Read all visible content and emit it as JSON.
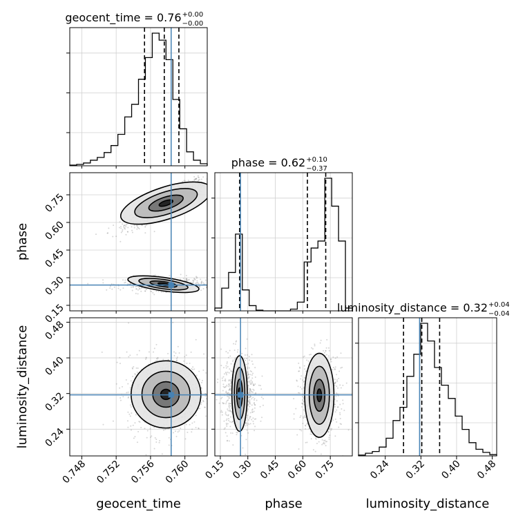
{
  "chart_data": {
    "type": "corner",
    "parameters": [
      "geocent_time",
      "phase",
      "luminosity_distance"
    ],
    "ranges": {
      "geocent_time": [
        0.7466,
        0.7626
      ],
      "phase": [
        0.12,
        0.87
      ],
      "luminosity_distance": [
        0.18,
        0.49
      ]
    },
    "ticks": {
      "geocent_time": [
        "0.748",
        "0.752",
        "0.756",
        "0.760"
      ],
      "phase": [
        "0.15",
        "0.30",
        "0.45",
        "0.60",
        "0.75"
      ],
      "luminosity_distance": [
        "0.24",
        "0.32",
        "0.40",
        "0.48"
      ]
    },
    "truths": {
      "geocent_time": 0.7584,
      "phase": 0.26,
      "luminosity_distance": 0.317
    },
    "titles": {
      "geocent_time": {
        "label": "geocent_time = 0.76",
        "plus": "+0.00",
        "minus": "−0.00"
      },
      "phase": {
        "label": "phase = 0.62",
        "plus": "+0.10",
        "minus": "−0.37"
      },
      "luminosity_distance": {
        "label": "luminosity_distance = 0.32",
        "plus": "+0.04",
        "minus": "−0.04"
      }
    },
    "quantiles": {
      "geocent_time": [
        0.7553,
        0.7576,
        0.7593
      ],
      "phase": [
        0.255,
        0.625,
        0.725
      ],
      "luminosity_distance": [
        0.281,
        0.322,
        0.362
      ]
    },
    "histograms": {
      "geocent_time": {
        "edges": [
          0.7466,
          0.7474,
          0.7482,
          0.749,
          0.7498,
          0.7506,
          0.7514,
          0.7522,
          0.753,
          0.7538,
          0.7546,
          0.7554,
          0.7562,
          0.757,
          0.7578,
          0.7586,
          0.7594,
          0.7602,
          0.761,
          0.7618,
          0.7626
        ],
        "counts": [
          1,
          2,
          4,
          8,
          12,
          19,
          29,
          45,
          70,
          88,
          124,
          155,
          190,
          180,
          152,
          95,
          53,
          20,
          8,
          3
        ]
      },
      "phase": {
        "edges": [
          0.12,
          0.1575,
          0.195,
          0.2325,
          0.27,
          0.3075,
          0.345,
          0.3825,
          0.42,
          0.4575,
          0.495,
          0.5325,
          0.57,
          0.6075,
          0.645,
          0.6825,
          0.72,
          0.7575,
          0.795,
          0.8325,
          0.87
        ],
        "counts": [
          8,
          65,
          110,
          220,
          60,
          15,
          2,
          0,
          0,
          0,
          0,
          5,
          25,
          140,
          180,
          200,
          380,
          300,
          200,
          8
        ]
      },
      "luminosity_distance": {
        "edges": [
          0.18,
          0.1955,
          0.211,
          0.2265,
          0.242,
          0.2575,
          0.273,
          0.2885,
          0.304,
          0.3195,
          0.335,
          0.3505,
          0.366,
          0.3815,
          0.397,
          0.4125,
          0.428,
          0.4435,
          0.459,
          0.4745,
          0.49
        ],
        "counts": [
          2,
          6,
          10,
          20,
          40,
          80,
          110,
          180,
          230,
          300,
          260,
          200,
          160,
          130,
          90,
          60,
          30,
          15,
          8,
          3
        ]
      }
    },
    "modes_2d": {
      "phase_vs_geocent_time": [
        {
          "x": 0.7578,
          "y": 0.705,
          "weight": 1.0
        },
        {
          "x": 0.7575,
          "y": 0.265,
          "weight": 0.65
        }
      ],
      "luminosity_distance_vs_geocent_time": [
        {
          "x": 0.7578,
          "y": 0.318,
          "weight": 1.0
        }
      ],
      "luminosity_distance_vs_phase": [
        {
          "x": 0.255,
          "y": 0.32,
          "weight": 0.7
        },
        {
          "x": 0.69,
          "y": 0.316,
          "weight": 1.0
        }
      ]
    },
    "grid": true,
    "truth_color": "#4682b4"
  },
  "colors": {
    "truth": "#4682b4",
    "grid": "#d0d0d0",
    "hist": "#000000",
    "quantile": "#000000"
  }
}
